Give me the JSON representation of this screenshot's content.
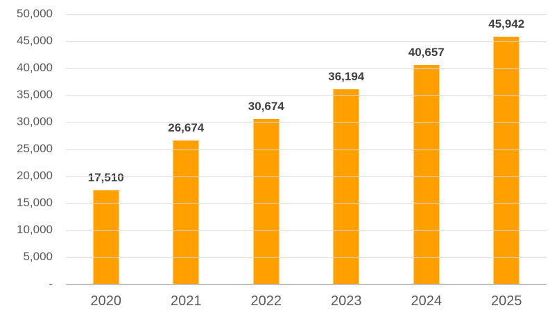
{
  "chart_data": {
    "type": "bar",
    "title": "",
    "xlabel": "",
    "ylabel": "",
    "categories": [
      "2020",
      "2021",
      "2022",
      "2023",
      "2024",
      "2025"
    ],
    "values": [
      17510,
      26674,
      30674,
      36194,
      40657,
      45942
    ],
    "data_labels": [
      "17,510",
      "26,674",
      "30,674",
      "36,194",
      "40,657",
      "45,942"
    ],
    "ylim": [
      0,
      50000
    ],
    "y_tick_step": 5000,
    "y_tick_labels": [
      "-",
      "5,000",
      "10,000",
      "15,000",
      "20,000",
      "25,000",
      "30,000",
      "35,000",
      "40,000",
      "45,000",
      "50,000"
    ],
    "grid": true,
    "legend": false,
    "colors": {
      "bar": "#FFA000",
      "data_label": "#404040",
      "axis_text": "#595959",
      "gridline": "#D9D9D9",
      "axis_line": "#BFBFBF"
    }
  }
}
